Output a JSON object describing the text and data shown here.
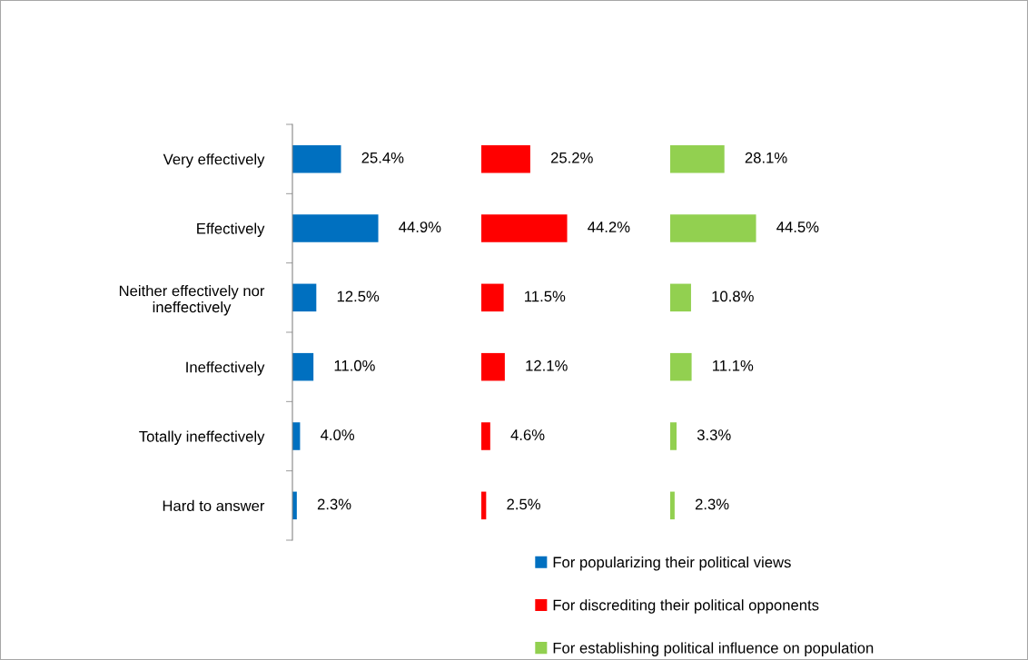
{
  "chart_data": [
    {
      "type": "bar",
      "orientation": "horizontal",
      "tick_labels": "y",
      "legend": "bottom",
      "categories": [
        "Very effectively",
        "Effectively",
        "Neither effectively nor\nineffectively",
        "Ineffectively",
        "Totally ineffectively",
        "Hard to answer"
      ],
      "series": [
        {
          "name": "For popularizing their political views",
          "color": "#0070c0",
          "values": [
            25.4,
            44.9,
            12.5,
            11.0,
            4.0,
            2.3
          ],
          "value_labels": [
            "25.4%",
            "44.9%",
            "12.5%",
            "11.0%",
            "4.0%",
            "2.3%"
          ]
        }
      ]
    },
    {
      "type": "bar",
      "orientation": "horizontal",
      "tick_labels": false,
      "legend": "bottom",
      "categories": [
        null,
        null,
        null,
        null,
        null,
        null
      ],
      "series": [
        {
          "name": "For discrediting their political opponents",
          "color": "#ff0000",
          "values": [
            25.2,
            44.2,
            11.5,
            12.1,
            4.6,
            2.5
          ],
          "value_labels": [
            "25.2%",
            "44.2%",
            "11.5%",
            "12.1%",
            "4.6%",
            "2.5%"
          ]
        }
      ]
    },
    {
      "type": "bar",
      "orientation": "horizontal",
      "tick_labels": false,
      "legend": "bottom",
      "categories": [
        null,
        null,
        null,
        null,
        null,
        null
      ],
      "series": [
        {
          "name": "For establishing political influence on population",
          "color": "#92d050",
          "values": [
            28.1,
            44.5,
            10.8,
            11.1,
            3.3,
            2.3
          ],
          "value_labels": [
            "28.1%",
            "44.5%",
            "10.8%",
            "11.1%",
            "3.3%",
            "2.3%"
          ]
        }
      ]
    }
  ]
}
